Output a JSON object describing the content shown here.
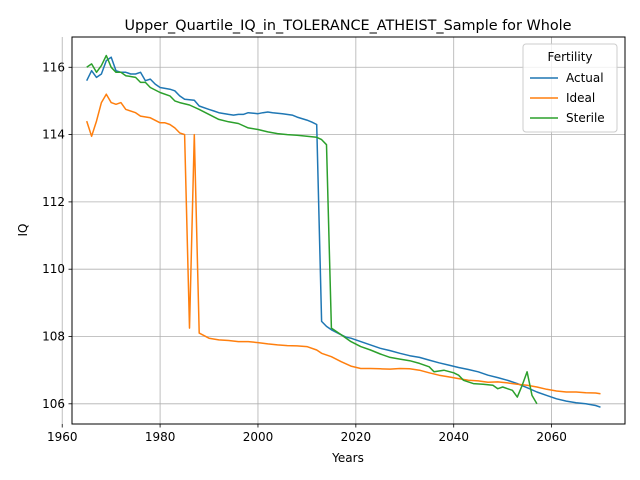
{
  "chart_data": {
    "type": "line",
    "title": "Upper_Quartile_IQ_in_TOLERANCE_ATHEIST_Sample for Whole",
    "xlabel": "Years",
    "ylabel": "IQ",
    "xlim": [
      1962,
      2075
    ],
    "ylim": [
      105.4,
      116.9
    ],
    "x_ticks": [
      1960,
      1980,
      2000,
      2020,
      2040,
      2060
    ],
    "y_ticks": [
      106,
      108,
      110,
      112,
      114,
      116
    ],
    "grid": true,
    "legend": {
      "title": "Fertility",
      "position": "top-right"
    },
    "series": [
      {
        "name": "Actual",
        "color": "#1f77b4",
        "points": [
          [
            1965,
            115.6
          ],
          [
            1966,
            115.9
          ],
          [
            1967,
            115.7
          ],
          [
            1968,
            115.8
          ],
          [
            1969,
            116.2
          ],
          [
            1970,
            116.3
          ],
          [
            1971,
            115.9
          ],
          [
            1972,
            115.85
          ],
          [
            1973,
            115.85
          ],
          [
            1974,
            115.8
          ],
          [
            1975,
            115.8
          ],
          [
            1976,
            115.85
          ],
          [
            1977,
            115.6
          ],
          [
            1978,
            115.65
          ],
          [
            1979,
            115.5
          ],
          [
            1980,
            115.4
          ],
          [
            1982,
            115.35
          ],
          [
            1983,
            115.3
          ],
          [
            1984,
            115.15
          ],
          [
            1985,
            115.05
          ],
          [
            1987,
            115.02
          ],
          [
            1988,
            114.85
          ],
          [
            1990,
            114.75
          ],
          [
            1991,
            114.7
          ],
          [
            1992,
            114.65
          ],
          [
            1994,
            114.6
          ],
          [
            1995,
            114.58
          ],
          [
            1996,
            114.6
          ],
          [
            1997,
            114.6
          ],
          [
            1998,
            114.65
          ],
          [
            2000,
            114.62
          ],
          [
            2001,
            114.65
          ],
          [
            2002,
            114.67
          ],
          [
            2003,
            114.65
          ],
          [
            2005,
            114.62
          ],
          [
            2007,
            114.58
          ],
          [
            2008,
            114.52
          ],
          [
            2010,
            114.43
          ],
          [
            2011,
            114.37
          ],
          [
            2012,
            114.3
          ],
          [
            2013,
            108.45
          ],
          [
            2014,
            108.3
          ],
          [
            2015,
            108.2
          ],
          [
            2017,
            108.05
          ],
          [
            2018,
            107.98
          ],
          [
            2019,
            107.95
          ],
          [
            2021,
            107.85
          ],
          [
            2023,
            107.75
          ],
          [
            2025,
            107.65
          ],
          [
            2027,
            107.58
          ],
          [
            2029,
            107.5
          ],
          [
            2031,
            107.43
          ],
          [
            2033,
            107.38
          ],
          [
            2035,
            107.3
          ],
          [
            2037,
            107.22
          ],
          [
            2039,
            107.15
          ],
          [
            2041,
            107.08
          ],
          [
            2043,
            107.02
          ],
          [
            2045,
            106.95
          ],
          [
            2047,
            106.85
          ],
          [
            2049,
            106.78
          ],
          [
            2051,
            106.7
          ],
          [
            2053,
            106.6
          ],
          [
            2055,
            106.48
          ],
          [
            2057,
            106.35
          ],
          [
            2059,
            106.25
          ],
          [
            2061,
            106.15
          ],
          [
            2063,
            106.08
          ],
          [
            2065,
            106.03
          ],
          [
            2067,
            106.0
          ],
          [
            2069,
            105.95
          ],
          [
            2070,
            105.9
          ]
        ]
      },
      {
        "name": "Ideal",
        "color": "#ff7f0e",
        "points": [
          [
            1965,
            114.4
          ],
          [
            1966,
            113.95
          ],
          [
            1967,
            114.4
          ],
          [
            1968,
            114.95
          ],
          [
            1969,
            115.2
          ],
          [
            1970,
            114.95
          ],
          [
            1971,
            114.9
          ],
          [
            1972,
            114.95
          ],
          [
            1973,
            114.75
          ],
          [
            1975,
            114.65
          ],
          [
            1976,
            114.55
          ],
          [
            1978,
            114.5
          ],
          [
            1980,
            114.35
          ],
          [
            1981,
            114.35
          ],
          [
            1982,
            114.3
          ],
          [
            1983,
            114.2
          ],
          [
            1984,
            114.05
          ],
          [
            1985,
            114.0
          ],
          [
            1986,
            108.25
          ],
          [
            1987,
            114.0
          ],
          [
            1988,
            108.1
          ],
          [
            1990,
            107.95
          ],
          [
            1992,
            107.9
          ],
          [
            1994,
            107.88
          ],
          [
            1996,
            107.85
          ],
          [
            1998,
            107.85
          ],
          [
            2000,
            107.82
          ],
          [
            2002,
            107.78
          ],
          [
            2004,
            107.75
          ],
          [
            2006,
            107.73
          ],
          [
            2008,
            107.72
          ],
          [
            2010,
            107.7
          ],
          [
            2012,
            107.6
          ],
          [
            2013,
            107.5
          ],
          [
            2015,
            107.4
          ],
          [
            2017,
            107.25
          ],
          [
            2019,
            107.12
          ],
          [
            2021,
            107.05
          ],
          [
            2023,
            107.05
          ],
          [
            2025,
            107.04
          ],
          [
            2027,
            107.03
          ],
          [
            2029,
            107.05
          ],
          [
            2031,
            107.04
          ],
          [
            2033,
            107.0
          ],
          [
            2035,
            106.92
          ],
          [
            2037,
            106.85
          ],
          [
            2039,
            106.8
          ],
          [
            2041,
            106.75
          ],
          [
            2043,
            106.7
          ],
          [
            2045,
            106.68
          ],
          [
            2047,
            106.64
          ],
          [
            2049,
            106.65
          ],
          [
            2051,
            106.62
          ],
          [
            2053,
            106.58
          ],
          [
            2055,
            106.55
          ],
          [
            2057,
            106.5
          ],
          [
            2059,
            106.43
          ],
          [
            2061,
            106.38
          ],
          [
            2063,
            106.35
          ],
          [
            2065,
            106.35
          ],
          [
            2067,
            106.33
          ],
          [
            2069,
            106.32
          ],
          [
            2070,
            106.3
          ]
        ]
      },
      {
        "name": "Sterile",
        "color": "#2ca02c",
        "points": [
          [
            1965,
            116.0
          ],
          [
            1966,
            116.1
          ],
          [
            1967,
            115.85
          ],
          [
            1968,
            116.05
          ],
          [
            1969,
            116.35
          ],
          [
            1970,
            116.0
          ],
          [
            1971,
            115.85
          ],
          [
            1972,
            115.85
          ],
          [
            1973,
            115.75
          ],
          [
            1975,
            115.7
          ],
          [
            1976,
            115.55
          ],
          [
            1977,
            115.55
          ],
          [
            1978,
            115.4
          ],
          [
            1980,
            115.25
          ],
          [
            1982,
            115.15
          ],
          [
            1983,
            115.0
          ],
          [
            1984,
            114.95
          ],
          [
            1986,
            114.88
          ],
          [
            1988,
            114.75
          ],
          [
            1990,
            114.6
          ],
          [
            1992,
            114.45
          ],
          [
            1994,
            114.38
          ],
          [
            1996,
            114.33
          ],
          [
            1998,
            114.2
          ],
          [
            2000,
            114.15
          ],
          [
            2002,
            114.08
          ],
          [
            2004,
            114.03
          ],
          [
            2006,
            114.0
          ],
          [
            2008,
            113.98
          ],
          [
            2010,
            113.95
          ],
          [
            2012,
            113.92
          ],
          [
            2013,
            113.85
          ],
          [
            2014,
            113.7
          ],
          [
            2015,
            108.25
          ],
          [
            2017,
            108.05
          ],
          [
            2019,
            107.85
          ],
          [
            2021,
            107.7
          ],
          [
            2023,
            107.6
          ],
          [
            2025,
            107.48
          ],
          [
            2027,
            107.38
          ],
          [
            2029,
            107.33
          ],
          [
            2031,
            107.28
          ],
          [
            2033,
            107.2
          ],
          [
            2035,
            107.1
          ],
          [
            2036,
            106.95
          ],
          [
            2038,
            107.0
          ],
          [
            2040,
            106.92
          ],
          [
            2041,
            106.85
          ],
          [
            2042,
            106.7
          ],
          [
            2044,
            106.6
          ],
          [
            2046,
            106.58
          ],
          [
            2048,
            106.55
          ],
          [
            2049,
            106.45
          ],
          [
            2050,
            106.5
          ],
          [
            2051,
            106.45
          ],
          [
            2052,
            106.4
          ],
          [
            2053,
            106.2
          ],
          [
            2054,
            106.55
          ],
          [
            2055,
            106.95
          ],
          [
            2056,
            106.25
          ],
          [
            2057,
            106.0
          ]
        ]
      }
    ]
  }
}
